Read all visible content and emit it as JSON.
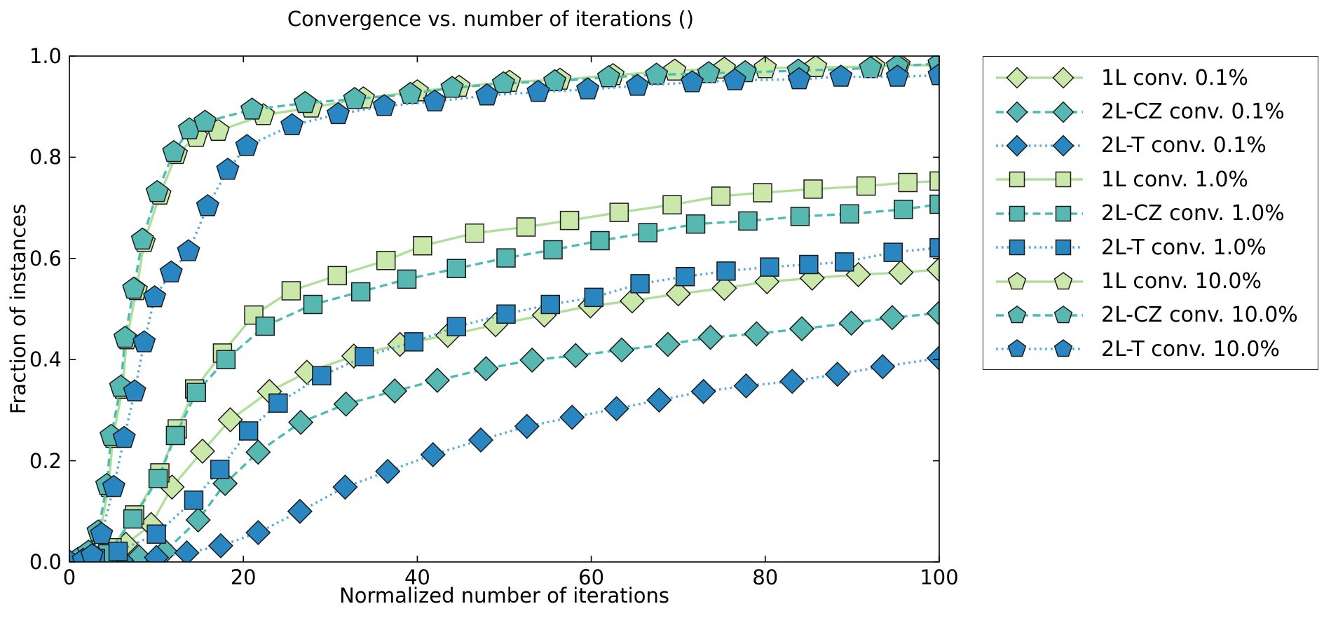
{
  "title": "Convergence vs. number of iterations ()",
  "axes": {
    "xlabel": "Normalized number of iterations",
    "ylabel": "Fraction of instances",
    "xtick_labels": [
      "0",
      "20",
      "40",
      "60",
      "80",
      "100"
    ],
    "xtick_values": [
      0,
      20,
      40,
      60,
      80,
      100
    ],
    "ytick_labels": [
      "0.0",
      "0.2",
      "0.4",
      "0.6",
      "0.8",
      "1.0"
    ],
    "ytick_values": [
      0,
      0.2,
      0.4,
      0.6,
      0.8,
      1.0
    ]
  },
  "colors": {
    "green_fill": "#cbe8ab",
    "green_line": "#b0df9a",
    "teal_fill": "#57b7b1",
    "teal_line": "#4cbcb4",
    "blue_fill": "#2a86c0",
    "blue_line": "#59acda",
    "marker_edge": "#1a1a1a",
    "axis": "#000000"
  },
  "chart_data": {
    "type": "line",
    "title": "Convergence vs. number of iterations ()",
    "xlabel": "Normalized number of iterations",
    "ylabel": "Fraction of instances",
    "xlim": [
      0,
      100
    ],
    "ylim": [
      0,
      1.0
    ],
    "grid": false,
    "legend_position": "outside-right",
    "series": [
      {
        "name": "1L conv. 0.1%",
        "marker": "diamond",
        "line_style": "solid",
        "fill": "#cbe8ab",
        "line": "#b0df9a",
        "points": [
          [
            0,
            0
          ],
          [
            2,
            0.004
          ],
          [
            4,
            0.012
          ],
          [
            6.5,
            0.035
          ],
          [
            9.4,
            0.074
          ],
          [
            11.8,
            0.148
          ],
          [
            15.3,
            0.219
          ],
          [
            18.5,
            0.281
          ],
          [
            23,
            0.337
          ],
          [
            27.3,
            0.375
          ],
          [
            32.7,
            0.407
          ],
          [
            38,
            0.43
          ],
          [
            43.5,
            0.448
          ],
          [
            49,
            0.469
          ],
          [
            54.6,
            0.488
          ],
          [
            59.9,
            0.506
          ],
          [
            64.7,
            0.516
          ],
          [
            70,
            0.53
          ],
          [
            75.3,
            0.541
          ],
          [
            80.2,
            0.554
          ],
          [
            85.4,
            0.561
          ],
          [
            90.7,
            0.568
          ],
          [
            95.6,
            0.572
          ],
          [
            100,
            0.578
          ]
        ]
      },
      {
        "name": "2L-CZ conv. 0.1%",
        "marker": "diamond",
        "line_style": "dashed",
        "fill": "#57b7b1",
        "line": "#4cbcb4",
        "points": [
          [
            0,
            0
          ],
          [
            4,
            0.003
          ],
          [
            8,
            0.01
          ],
          [
            11,
            0.021
          ],
          [
            14.8,
            0.083
          ],
          [
            17.9,
            0.155
          ],
          [
            21.7,
            0.217
          ],
          [
            26.6,
            0.276
          ],
          [
            31.8,
            0.312
          ],
          [
            37.4,
            0.338
          ],
          [
            42.3,
            0.359
          ],
          [
            47.9,
            0.382
          ],
          [
            53.2,
            0.399
          ],
          [
            58.2,
            0.408
          ],
          [
            63.5,
            0.419
          ],
          [
            68.8,
            0.43
          ],
          [
            73.7,
            0.444
          ],
          [
            79,
            0.451
          ],
          [
            84.2,
            0.461
          ],
          [
            89.9,
            0.472
          ],
          [
            94.6,
            0.483
          ],
          [
            100,
            0.492
          ]
        ]
      },
      {
        "name": "2L-T conv. 0.1%",
        "marker": "diamond",
        "line_style": "dotted",
        "fill": "#2a86c0",
        "line": "#59acda",
        "points": [
          [
            0,
            0
          ],
          [
            6,
            0.003
          ],
          [
            10,
            0.009
          ],
          [
            13.5,
            0.018
          ],
          [
            17.4,
            0.032
          ],
          [
            21.7,
            0.058
          ],
          [
            26.5,
            0.1
          ],
          [
            31.7,
            0.148
          ],
          [
            36.6,
            0.179
          ],
          [
            41.8,
            0.212
          ],
          [
            47.3,
            0.241
          ],
          [
            52.6,
            0.268
          ],
          [
            57.8,
            0.286
          ],
          [
            62.9,
            0.303
          ],
          [
            67.8,
            0.32
          ],
          [
            72.9,
            0.337
          ],
          [
            77.8,
            0.348
          ],
          [
            83.1,
            0.357
          ],
          [
            88.3,
            0.371
          ],
          [
            93.5,
            0.386
          ],
          [
            100,
            0.403
          ]
        ]
      },
      {
        "name": "1L conv. 1.0%",
        "marker": "square",
        "line_style": "solid",
        "fill": "#cbe8ab",
        "line": "#b0df9a",
        "points": [
          [
            0,
            0
          ],
          [
            1.5,
            0.004
          ],
          [
            3.2,
            0.012
          ],
          [
            4.9,
            0.028
          ],
          [
            7.5,
            0.093
          ],
          [
            10.4,
            0.176
          ],
          [
            12.4,
            0.263
          ],
          [
            14.4,
            0.342
          ],
          [
            17.6,
            0.413
          ],
          [
            21.2,
            0.488
          ],
          [
            25.5,
            0.536
          ],
          [
            30.8,
            0.566
          ],
          [
            36.4,
            0.596
          ],
          [
            40.6,
            0.625
          ],
          [
            46.6,
            0.65
          ],
          [
            52.5,
            0.662
          ],
          [
            57.5,
            0.675
          ],
          [
            63.2,
            0.691
          ],
          [
            69.3,
            0.706
          ],
          [
            74.9,
            0.723
          ],
          [
            79.7,
            0.73
          ],
          [
            85.5,
            0.737
          ],
          [
            91.6,
            0.743
          ],
          [
            96.4,
            0.75
          ],
          [
            100,
            0.753
          ]
        ]
      },
      {
        "name": "2L-CZ conv. 1.0%",
        "marker": "square",
        "line_style": "dashed",
        "fill": "#57b7b1",
        "line": "#4cbcb4",
        "points": [
          [
            0,
            0
          ],
          [
            2,
            0.005
          ],
          [
            4.4,
            0.016
          ],
          [
            7.3,
            0.085
          ],
          [
            10.2,
            0.165
          ],
          [
            12.2,
            0.25
          ],
          [
            14.6,
            0.335
          ],
          [
            18,
            0.4
          ],
          [
            22.5,
            0.466
          ],
          [
            28,
            0.509
          ],
          [
            33.5,
            0.534
          ],
          [
            38.8,
            0.559
          ],
          [
            44.5,
            0.58
          ],
          [
            50.2,
            0.601
          ],
          [
            55.6,
            0.617
          ],
          [
            61,
            0.635
          ],
          [
            66.5,
            0.651
          ],
          [
            72,
            0.668
          ],
          [
            78,
            0.674
          ],
          [
            84,
            0.683
          ],
          [
            89.7,
            0.688
          ],
          [
            95.9,
            0.697
          ],
          [
            100,
            0.707
          ]
        ]
      },
      {
        "name": "2L-T conv. 1.0%",
        "marker": "square",
        "line_style": "dotted",
        "fill": "#2a86c0",
        "line": "#59acda",
        "points": [
          [
            0,
            0
          ],
          [
            3,
            0.007
          ],
          [
            5.6,
            0.021
          ],
          [
            10,
            0.055
          ],
          [
            14.3,
            0.122
          ],
          [
            17.3,
            0.183
          ],
          [
            20.6,
            0.259
          ],
          [
            24,
            0.314
          ],
          [
            29,
            0.368
          ],
          [
            33.9,
            0.406
          ],
          [
            39.6,
            0.435
          ],
          [
            44.5,
            0.465
          ],
          [
            50.2,
            0.49
          ],
          [
            55.3,
            0.509
          ],
          [
            60.3,
            0.523
          ],
          [
            65.6,
            0.55
          ],
          [
            70.8,
            0.564
          ],
          [
            75.5,
            0.575
          ],
          [
            80.5,
            0.583
          ],
          [
            85,
            0.588
          ],
          [
            89.1,
            0.593
          ],
          [
            94.7,
            0.612
          ],
          [
            100,
            0.621
          ]
        ]
      },
      {
        "name": "1L conv. 10.0%",
        "marker": "pentagon",
        "line_style": "solid",
        "fill": "#cbe8ab",
        "line": "#b0df9a",
        "points": [
          [
            0,
            0
          ],
          [
            1.2,
            0.005
          ],
          [
            2.3,
            0.016
          ],
          [
            3.5,
            0.055
          ],
          [
            4.5,
            0.148
          ],
          [
            5,
            0.245
          ],
          [
            6.1,
            0.342
          ],
          [
            6.6,
            0.44
          ],
          [
            7.7,
            0.537
          ],
          [
            8.6,
            0.632
          ],
          [
            10.4,
            0.726
          ],
          [
            12.3,
            0.806
          ],
          [
            14.6,
            0.84
          ],
          [
            17.1,
            0.852
          ],
          [
            22.3,
            0.883
          ],
          [
            27.8,
            0.898
          ],
          [
            33.8,
            0.916
          ],
          [
            40,
            0.93
          ],
          [
            44.8,
            0.939
          ],
          [
            50.6,
            0.949
          ],
          [
            56.4,
            0.953
          ],
          [
            62.5,
            0.962
          ],
          [
            69.6,
            0.971
          ],
          [
            75.3,
            0.975
          ],
          [
            80,
            0.976
          ],
          [
            85.8,
            0.978
          ],
          [
            92.5,
            0.979
          ],
          [
            95.4,
            0.982
          ],
          [
            100,
            0.982
          ]
        ]
      },
      {
        "name": "2L-CZ conv. 10.0%",
        "marker": "pentagon",
        "line_style": "dashed",
        "fill": "#57b7b1",
        "line": "#4cbcb4",
        "points": [
          [
            0,
            0
          ],
          [
            1,
            0.006
          ],
          [
            2.2,
            0.02
          ],
          [
            3.3,
            0.06
          ],
          [
            4.3,
            0.152
          ],
          [
            4.8,
            0.249
          ],
          [
            5.9,
            0.346
          ],
          [
            6.4,
            0.443
          ],
          [
            7.4,
            0.54
          ],
          [
            8.4,
            0.637
          ],
          [
            10.1,
            0.731
          ],
          [
            12,
            0.81
          ],
          [
            13.8,
            0.855
          ],
          [
            15.6,
            0.87
          ],
          [
            21,
            0.894
          ],
          [
            27.1,
            0.907
          ],
          [
            32.8,
            0.915
          ],
          [
            39.2,
            0.925
          ],
          [
            44,
            0.937
          ],
          [
            49.9,
            0.946
          ],
          [
            55.8,
            0.95
          ],
          [
            62,
            0.958
          ],
          [
            67.5,
            0.963
          ],
          [
            73.5,
            0.966
          ],
          [
            77.7,
            0.968
          ],
          [
            83.8,
            0.971
          ],
          [
            92.1,
            0.976
          ],
          [
            95.2,
            0.98
          ],
          [
            100,
            0.985
          ]
        ]
      },
      {
        "name": "2L-T conv. 10.0%",
        "marker": "pentagon",
        "line_style": "dotted",
        "fill": "#2a86c0",
        "line": "#59acda",
        "points": [
          [
            0,
            0
          ],
          [
            1.6,
            0.004
          ],
          [
            2.6,
            0.013
          ],
          [
            3.7,
            0.055
          ],
          [
            5.1,
            0.148
          ],
          [
            6.3,
            0.245
          ],
          [
            7.5,
            0.337
          ],
          [
            8.6,
            0.434
          ],
          [
            9.8,
            0.523
          ],
          [
            11.7,
            0.572
          ],
          [
            13.7,
            0.614
          ],
          [
            15.9,
            0.703
          ],
          [
            18.2,
            0.775
          ],
          [
            20.4,
            0.822
          ],
          [
            25.6,
            0.863
          ],
          [
            30.9,
            0.885
          ],
          [
            36.2,
            0.901
          ],
          [
            42,
            0.91
          ],
          [
            48,
            0.922
          ],
          [
            53.9,
            0.929
          ],
          [
            59.6,
            0.934
          ],
          [
            65.3,
            0.941
          ],
          [
            71.6,
            0.948
          ],
          [
            76.5,
            0.952
          ],
          [
            83.9,
            0.954
          ],
          [
            88.7,
            0.959
          ],
          [
            95.2,
            0.959
          ],
          [
            100,
            0.962
          ]
        ]
      }
    ]
  },
  "legend": {
    "labels": [
      "1L conv. 0.1%",
      "2L-CZ conv. 0.1%",
      "2L-T conv. 0.1%",
      "1L conv. 1.0%",
      "2L-CZ conv. 1.0%",
      "2L-T conv. 1.0%",
      "1L conv. 10.0%",
      "2L-CZ conv. 10.0%",
      "2L-T conv. 10.0%"
    ]
  }
}
